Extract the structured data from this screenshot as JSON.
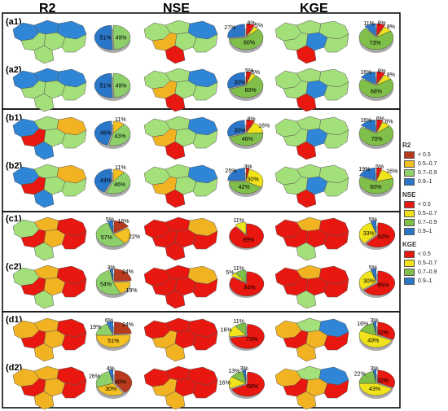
{
  "headers": [
    "R2",
    "NSE",
    "KGE"
  ],
  "colors": {
    "r2_lt05": "#b83a1e",
    "r2_05_07": "#f4c022",
    "r2_07_09": "#8ed16a",
    "r2_09_1": "#2a76c9",
    "nse_lt05": "#e8170f",
    "nse_05_07": "#f0e21b",
    "nse_07_09": "#7fbf4a",
    "nse_09_1": "#2a76c9",
    "map_lt05": "#e8170f",
    "map_05_07": "#f2b322",
    "map_07_09": "#a4e07a",
    "map_09_1": "#2f86d6"
  },
  "legend": [
    {
      "title": "R2",
      "items": [
        {
          "label": "< 0.5",
          "color": "#b83a1e"
        },
        {
          "label": "0.5–0.7",
          "color": "#f4c022"
        },
        {
          "label": "0.7–0.9",
          "color": "#8ed16a"
        },
        {
          "label": "0.9–1",
          "color": "#2a76c9"
        }
      ]
    },
    {
      "title": "NSE",
      "items": [
        {
          "label": "< 0.5",
          "color": "#e8170f"
        },
        {
          "label": "0.5–0.7",
          "color": "#f0e21b"
        },
        {
          "label": "0.7–0.9",
          "color": "#7fbf4a"
        },
        {
          "label": "0.9–1",
          "color": "#2a76c9"
        }
      ]
    },
    {
      "title": "KGE",
      "items": [
        {
          "label": "< 0.5",
          "color": "#e8170f"
        },
        {
          "label": "0.5–0.7",
          "color": "#f0e21b"
        },
        {
          "label": "0.7–0.9",
          "color": "#7fbf4a"
        },
        {
          "label": "0.9–1",
          "color": "#2a76c9"
        }
      ]
    }
  ],
  "rows": [
    {
      "label": "(a1)",
      "group": 0,
      "maps": [
        "blue-green",
        "green-mixed",
        "green-blue"
      ],
      "pies": [
        {
          "slices": [
            0,
            0,
            49,
            51
          ],
          "labels": [
            "",
            "",
            "49%",
            "51%"
          ]
        },
        {
          "slices": [
            8,
            5,
            60,
            27
          ],
          "labels": [
            "8%",
            "5%",
            "60%",
            "27%"
          ]
        },
        {
          "slices": [
            8,
            8,
            73,
            11
          ],
          "labels": [
            "8%",
            "8%",
            "73%",
            "11%"
          ]
        }
      ]
    },
    {
      "label": "(a2)",
      "group": 0,
      "maps": [
        "blue-green",
        "green-mixed",
        "green-blue"
      ],
      "pies": [
        {
          "slices": [
            0,
            0,
            49,
            51
          ],
          "labels": [
            "",
            "",
            "49%",
            "51%"
          ]
        },
        {
          "slices": [
            5,
            5,
            60,
            30
          ],
          "labels": [
            "5%",
            "5%",
            "60%",
            "30%"
          ]
        },
        {
          "slices": [
            8,
            8,
            68,
            16
          ],
          "labels": [
            "8%",
            "8%",
            "68%",
            "16%"
          ]
        }
      ]
    },
    {
      "label": "(b1)",
      "group": 1,
      "maps": [
        "blue-green-mixed",
        "green-mixed",
        "green-blue"
      ],
      "pies": [
        {
          "slices": [
            0,
            11,
            43,
            46
          ],
          "labels": [
            "",
            "11%",
            "43%",
            "46%"
          ]
        },
        {
          "slices": [
            8,
            16,
            46,
            30
          ],
          "labels": [
            "8%",
            "16%",
            "46%",
            "30%"
          ]
        },
        {
          "slices": [
            6,
            8,
            70,
            16
          ],
          "labels": [
            "6%",
            "8%",
            "70%",
            "16%"
          ]
        }
      ]
    },
    {
      "label": "(b2)",
      "group": 1,
      "maps": [
        "blue-green-mixed",
        "green-mixed",
        "green-blue"
      ],
      "pies": [
        {
          "slices": [
            0,
            11,
            46,
            43
          ],
          "labels": [
            "",
            "11%",
            "46%",
            "43%"
          ]
        },
        {
          "slices": [
            3,
            30,
            42,
            25
          ],
          "labels": [
            "3%",
            "30%",
            "42%",
            "25%"
          ]
        },
        {
          "slices": [
            5,
            16,
            60,
            19
          ],
          "labels": [
            "5%",
            "16%",
            "60%",
            "19%"
          ]
        }
      ]
    },
    {
      "label": "(c1)",
      "group": 2,
      "maps": [
        "red-orange-green",
        "red",
        "red-mixed"
      ],
      "pies": [
        {
          "slices": [
            16,
            22,
            57,
            5
          ],
          "labels": [
            "16%",
            "22%",
            "57%",
            "5%"
          ]
        },
        {
          "slices": [
            89,
            11,
            0,
            0
          ],
          "labels": [
            "89%",
            "11%",
            "",
            ""
          ]
        },
        {
          "slices": [
            62,
            33,
            0,
            5
          ],
          "labels": [
            "62%",
            "33%",
            "",
            "5%"
          ]
        }
      ]
    },
    {
      "label": "(c2)",
      "group": 2,
      "maps": [
        "red-orange-green",
        "red",
        "red-mixed"
      ],
      "pies": [
        {
          "slices": [
            24,
            19,
            54,
            3
          ],
          "labels": [
            "24%",
            "19%",
            "54%",
            "3%"
          ]
        },
        {
          "slices": [
            84,
            5,
            11,
            0
          ],
          "labels": [
            "84%",
            "5%",
            "11%",
            ""
          ]
        },
        {
          "slices": [
            65,
            30,
            0,
            5
          ],
          "labels": [
            "65%",
            "30%",
            "",
            "5%"
          ]
        }
      ]
    },
    {
      "label": "(d1)",
      "group": 3,
      "maps": [
        "orange-red",
        "red-orange",
        "orange-red-green"
      ],
      "pies": [
        {
          "slices": [
            24,
            51,
            19,
            6
          ],
          "labels": [
            "24%",
            "51%",
            "19%",
            "6%"
          ]
        },
        {
          "slices": [
            73,
            16,
            11,
            0
          ],
          "labels": [
            "73%",
            "16%",
            "11%",
            ""
          ]
        },
        {
          "slices": [
            32,
            49,
            16,
            3
          ],
          "labels": [
            "32%",
            "49%",
            "16%",
            "3%"
          ]
        }
      ]
    },
    {
      "label": "(d2)",
      "group": 3,
      "maps": [
        "orange-red",
        "red-orange",
        "orange-red-green"
      ],
      "pies": [
        {
          "slices": [
            40,
            30,
            26,
            4
          ],
          "labels": [
            "40%",
            "30%",
            "26%",
            "4%"
          ]
        },
        {
          "slices": [
            68,
            16,
            13,
            3
          ],
          "labels": [
            "68%",
            "16%",
            "13%",
            "3%"
          ]
        },
        {
          "slices": [
            32,
            43,
            22,
            3
          ],
          "labels": [
            "32%",
            "43%",
            "22%",
            "3%"
          ]
        }
      ]
    }
  ]
}
